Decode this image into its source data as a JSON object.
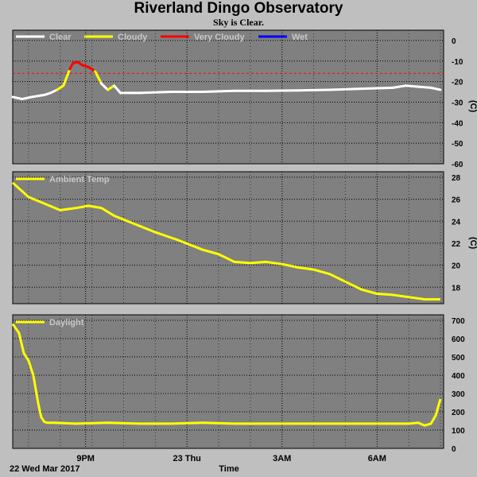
{
  "title": "Riverland Dingo Observatory",
  "subtitle": "Sky is Clear.",
  "colors": {
    "panel_bg": "#808080",
    "page_bg": "#bfbfbf",
    "grid": "#000000",
    "clear": "#ffffff",
    "cloudy": "#ffff00",
    "very_cloudy": "#ff0000",
    "wet": "#0000ff",
    "threshold": "#ff0000"
  },
  "x_axis": {
    "label": "Time",
    "start_label": "22 Wed Mar 2017",
    "tick_labels": [
      "9PM",
      "23 Thu",
      "3AM",
      "6AM"
    ]
  },
  "chart_data": [
    {
      "type": "line",
      "name": "sky",
      "unit": "(C)",
      "legend": [
        "Clear",
        "Cloudy",
        "Very Cloudy",
        "Wet"
      ],
      "ylim": [
        -60,
        5
      ],
      "yticks": [
        0,
        -10,
        -20,
        -30,
        -40,
        -50,
        -60
      ],
      "threshold": -16,
      "x_hours": [
        0.0,
        0.3,
        0.6,
        1.0,
        1.2,
        1.4,
        1.6,
        1.8,
        1.9,
        2.05,
        2.2,
        2.4,
        2.6,
        2.8,
        3.0,
        3.2,
        3.4,
        3.7,
        4.0,
        5.0,
        6.0,
        7.0,
        8.0,
        9.0,
        10.0,
        11.0,
        12.0,
        12.4,
        12.8,
        13.2,
        13.5
      ],
      "values": [
        -27.5,
        -28.5,
        -27.5,
        -26.5,
        -25.5,
        -24,
        -22,
        -14,
        -11,
        -10.5,
        -12,
        -13,
        -15,
        -21,
        -24,
        -22,
        -25.5,
        -25.5,
        -25.5,
        -25,
        -25,
        -24.5,
        -24.5,
        -24.3,
        -24,
        -23.5,
        -23,
        -22,
        -22.5,
        -23,
        -24
      ],
      "status": [
        "Clear",
        "Clear",
        "Clear",
        "Clear",
        "Clear",
        "Clear",
        "Cloudy",
        "Cloudy",
        "Very Cloudy",
        "Very Cloudy",
        "Very Cloudy",
        "Very Cloudy",
        "Very Cloudy",
        "Cloudy",
        "Clear",
        "Cloudy",
        "Clear",
        "Clear",
        "Clear",
        "Clear",
        "Clear",
        "Clear",
        "Clear",
        "Clear",
        "Clear",
        "Clear",
        "Clear",
        "Clear",
        "Clear",
        "Clear",
        "Clear"
      ]
    },
    {
      "type": "line",
      "name": "ambient",
      "unit": "(C)",
      "legend": [
        "Ambient Temp"
      ],
      "ylim": [
        16.5,
        28.5
      ],
      "yticks": [
        28,
        26,
        24,
        22,
        20,
        18
      ],
      "x_hours": [
        0.0,
        0.5,
        1.0,
        1.5,
        2.0,
        2.4,
        2.8,
        3.2,
        3.8,
        4.5,
        5.2,
        6.0,
        6.5,
        7.0,
        7.5,
        8.0,
        8.5,
        9.0,
        9.5,
        10.0,
        10.5,
        11.0,
        11.5,
        12.0,
        12.5,
        13.0,
        13.5
      ],
      "values": [
        27.5,
        26.2,
        25.6,
        25.0,
        25.2,
        25.4,
        25.2,
        24.5,
        23.8,
        23.0,
        22.3,
        21.4,
        21.0,
        20.3,
        20.2,
        20.3,
        20.1,
        19.8,
        19.6,
        19.2,
        18.5,
        17.8,
        17.4,
        17.3,
        17.1,
        16.9,
        16.9
      ]
    },
    {
      "type": "line",
      "name": "daylight",
      "unit": "",
      "legend": [
        "Daylight"
      ],
      "ylim": [
        0,
        730
      ],
      "yticks": [
        700,
        600,
        500,
        400,
        300,
        200,
        100,
        0
      ],
      "x_hours": [
        0.0,
        0.2,
        0.35,
        0.5,
        0.65,
        0.8,
        0.9,
        1.0,
        1.1,
        1.3,
        2.0,
        3.0,
        4.0,
        5.0,
        6.0,
        7.0,
        8.0,
        9.0,
        10.0,
        11.0,
        12.0,
        12.5,
        12.8,
        13.0,
        13.2,
        13.35,
        13.5
      ],
      "values": [
        680,
        630,
        520,
        480,
        400,
        250,
        170,
        145,
        140,
        140,
        135,
        140,
        135,
        135,
        140,
        135,
        135,
        135,
        135,
        135,
        135,
        135,
        140,
        125,
        135,
        180,
        270
      ]
    }
  ]
}
